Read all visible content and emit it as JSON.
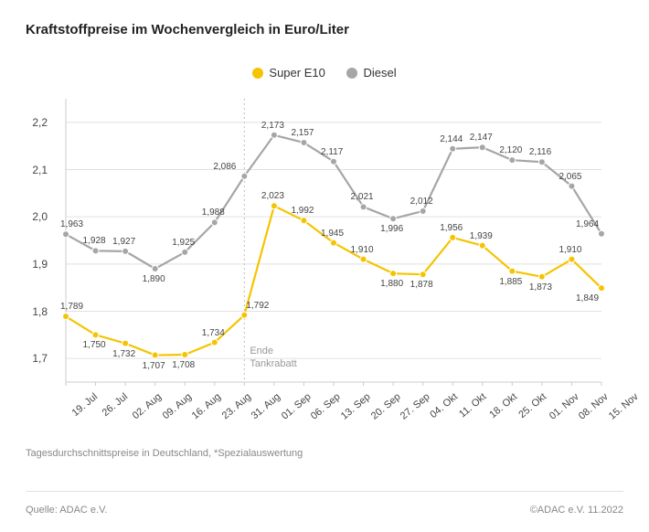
{
  "title": "Kraftstoffpreise im Wochenvergleich in Euro/Liter",
  "subtitle": "Tagesdurchschnittspreise in Deutschland, *Spezialauswertung",
  "source": "Quelle: ADAC e.V.",
  "copyright": "©ADAC e.V.  11.2022",
  "legend": {
    "series1": {
      "label": "Super E10",
      "color": "#f5c400"
    },
    "series2": {
      "label": "Diesel",
      "color": "#a6a6a6"
    }
  },
  "annotation": {
    "line1": "Ende",
    "line2": "Tankrabatt"
  },
  "chart": {
    "x_labels": [
      "19. Jul",
      "26. Jul",
      "02. Aug",
      "09. Aug",
      "16. Aug",
      "23. Aug",
      "31. Aug",
      "01. Sep",
      "06. Sep",
      "13. Sep",
      "20. Sep",
      "27. Sep",
      "04. Okt",
      "11. Okt",
      "18. Okt",
      "25. Okt",
      "01. Nov",
      "08. Nov",
      "15. Nov"
    ],
    "ylim": [
      1.65,
      2.25
    ],
    "yticks": [
      1.7,
      1.8,
      1.9,
      2.0,
      2.1,
      2.2
    ],
    "ytick_labels": [
      "1,7",
      "1,8",
      "1,9",
      "2,0",
      "2,1",
      "2,2"
    ],
    "grid_color": "#e0e0e0",
    "axis_color": "#cccccc",
    "vline_index": 6,
    "vline_color": "#bdbdbd",
    "series": {
      "superE10": {
        "color": "#f5c400",
        "values": [
          1.789,
          1.75,
          1.732,
          1.707,
          1.708,
          1.734,
          1.792,
          2.023,
          1.992,
          1.945,
          1.91,
          1.88,
          1.878,
          1.956,
          1.939,
          1.885,
          1.873,
          1.91,
          1.849
        ],
        "labels": [
          "1,789",
          "1,750",
          "1,732",
          "1,707",
          "1,708",
          "1,734",
          "1,792",
          "2,023",
          "1,992",
          "1,945",
          "1,910",
          "1,880",
          "1,878",
          "1,956",
          "1,939",
          "1,885",
          "1,873",
          "1,910",
          "1,849"
        ],
        "label_side": [
          "top",
          "bottom",
          "bottom",
          "bottom",
          "bottom",
          "top",
          "top-right",
          "top",
          "top",
          "top",
          "top",
          "bottom",
          "bottom",
          "top",
          "top",
          "bottom",
          "bottom",
          "top",
          "bottom"
        ]
      },
      "diesel": {
        "color": "#a6a6a6",
        "values": [
          1.963,
          1.928,
          1.927,
          1.89,
          1.925,
          1.988,
          2.086,
          2.173,
          2.157,
          2.117,
          2.021,
          1.996,
          2.012,
          2.144,
          2.147,
          2.12,
          2.116,
          2.065,
          1.964
        ],
        "labels": [
          "1,963",
          "1,928",
          "1,927",
          "1,890",
          "1,925",
          "1,988",
          "2,086",
          "2,173",
          "2,157",
          "2,117",
          "2,021",
          "1,996",
          "2,012",
          "2,144",
          "2,147",
          "2,120",
          "2,116",
          "2,065",
          "1,964"
        ],
        "label_side": [
          "top",
          "top",
          "top",
          "bottom",
          "top",
          "top",
          "top-left",
          "top",
          "top",
          "top",
          "top",
          "bottom",
          "top",
          "top",
          "top",
          "top",
          "top",
          "top",
          "top"
        ]
      }
    },
    "marker_radius": 3.5,
    "line_width": 2.2
  }
}
